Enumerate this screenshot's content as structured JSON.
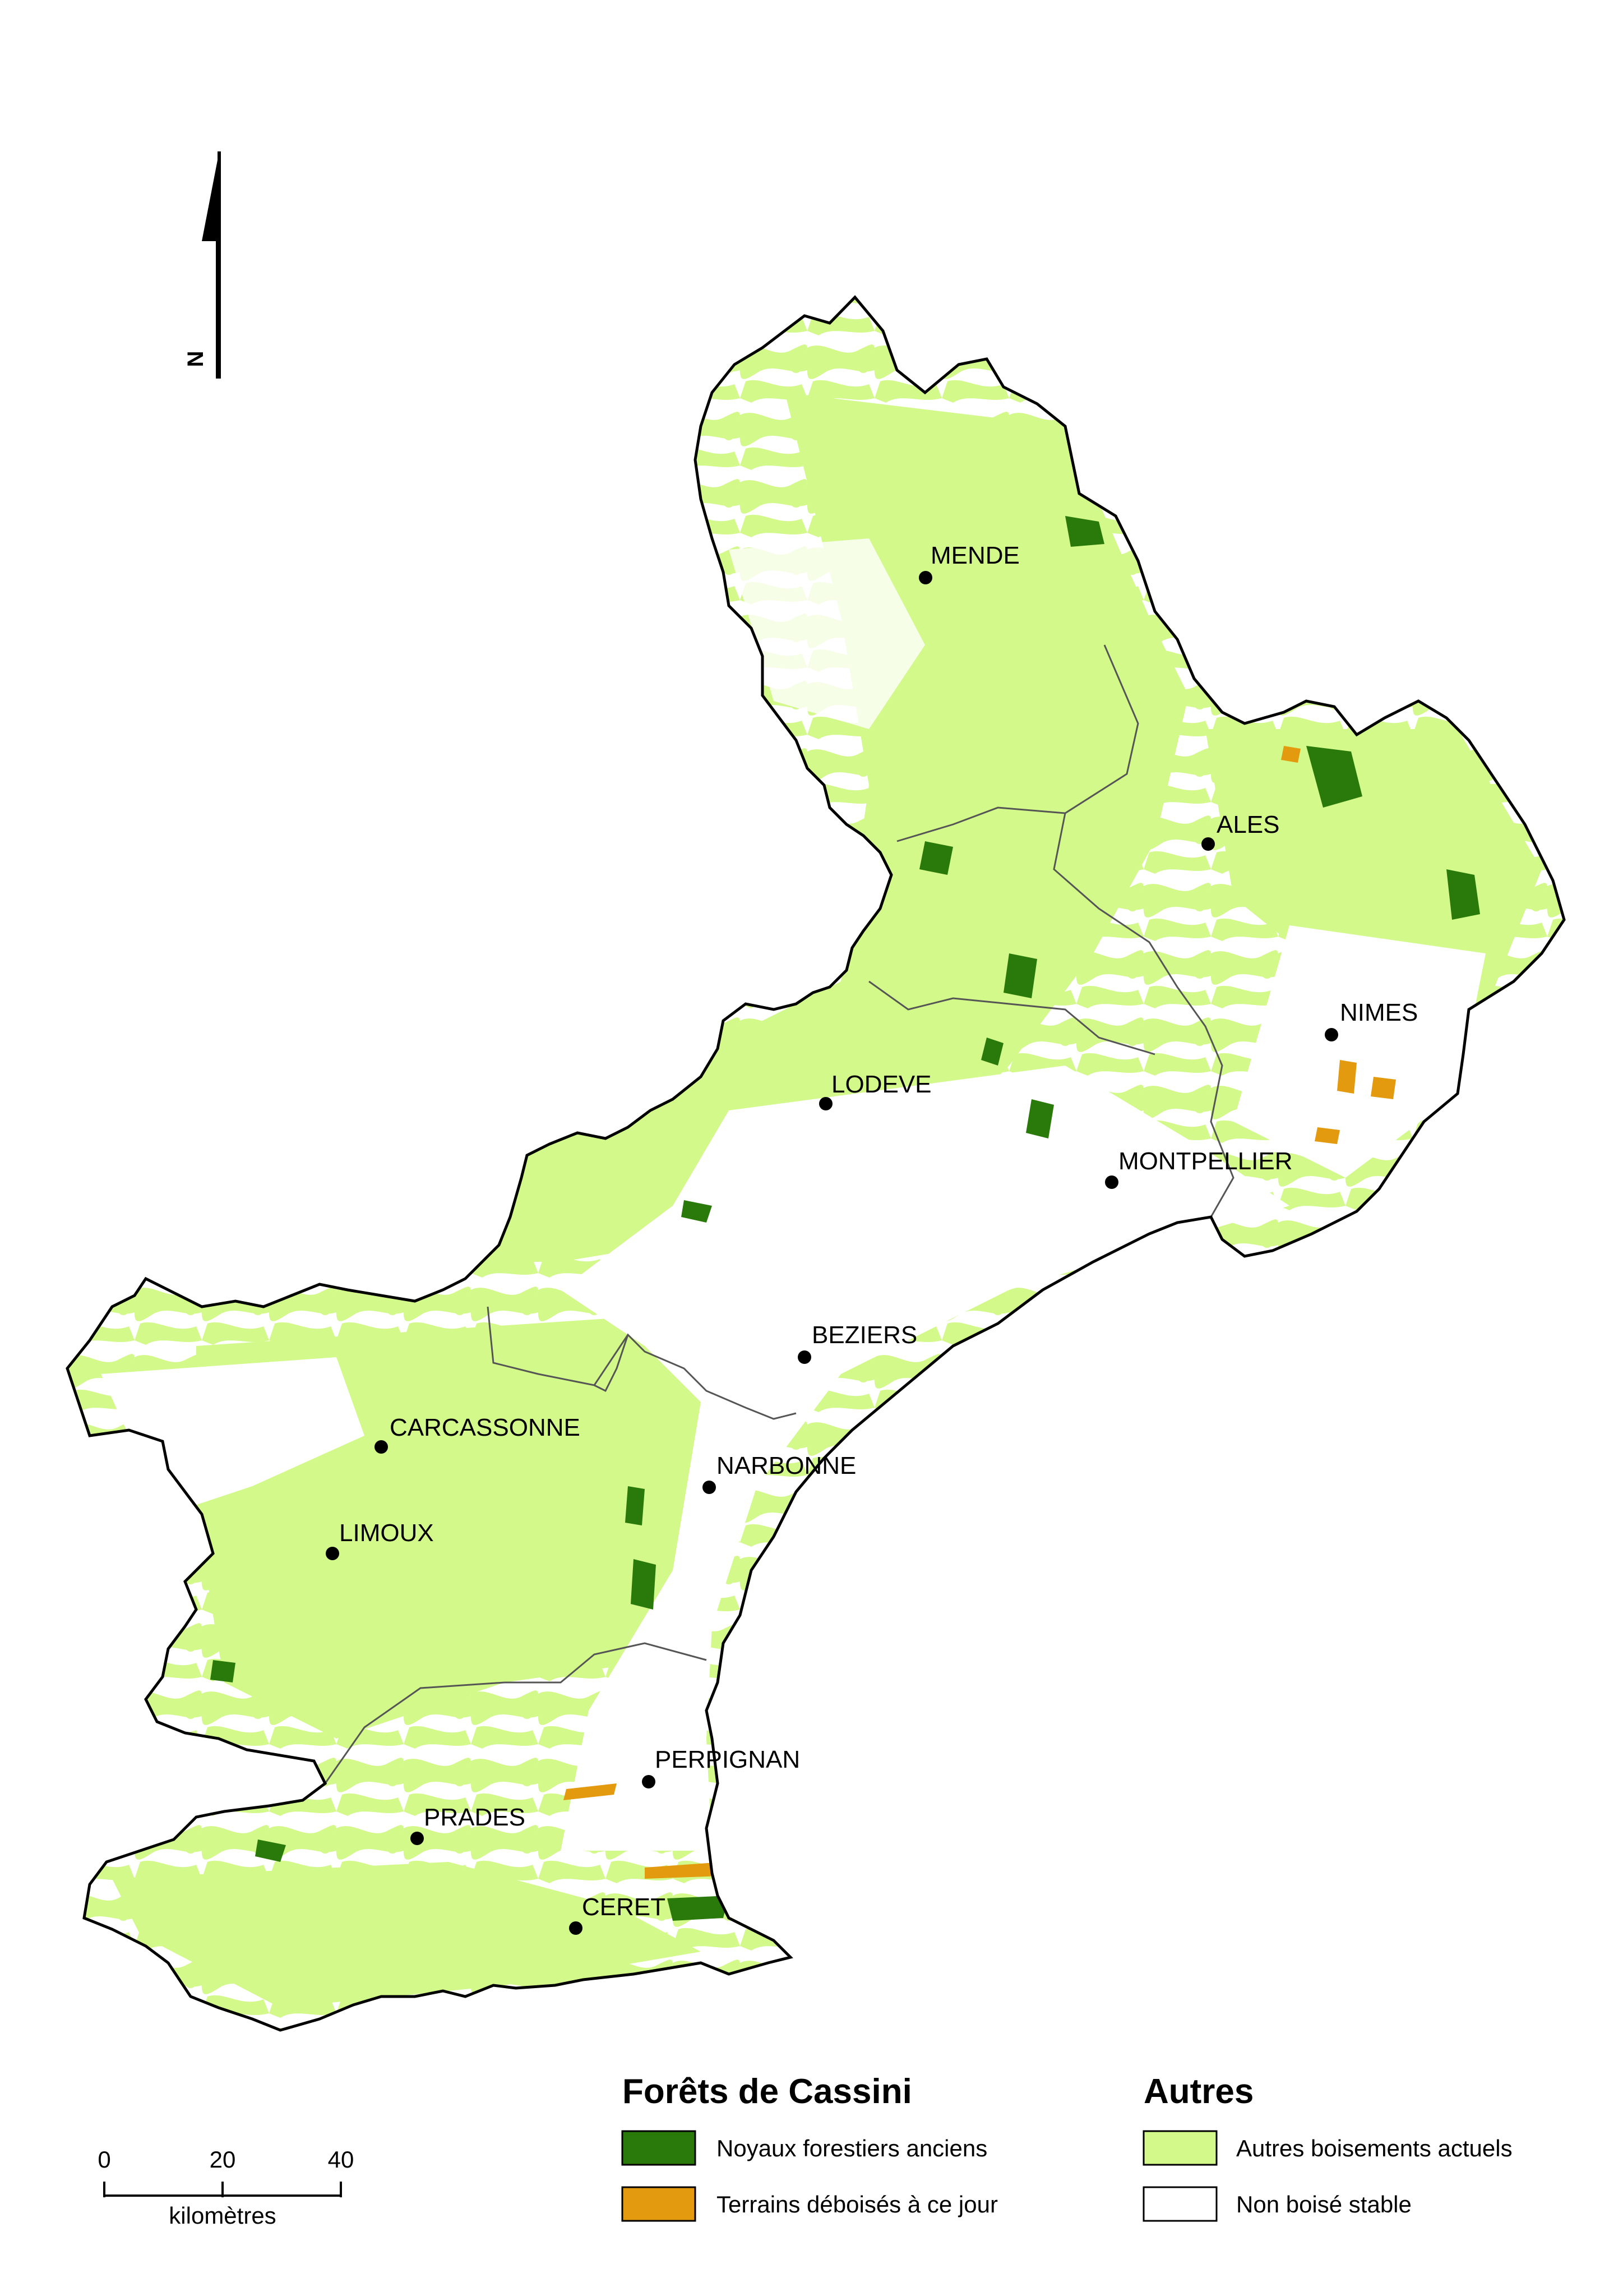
{
  "north_arrow": {
    "label": "N"
  },
  "cities": [
    {
      "id": "mende",
      "name": "MENDE"
    },
    {
      "id": "ales",
      "name": "ALES"
    },
    {
      "id": "nimes",
      "name": "NIMES"
    },
    {
      "id": "lodeve",
      "name": "LODEVE"
    },
    {
      "id": "montpellier",
      "name": "MONTPELLIER"
    },
    {
      "id": "beziers",
      "name": "BEZIERS"
    },
    {
      "id": "carcassonne",
      "name": "CARCASSONNE"
    },
    {
      "id": "narbonne",
      "name": "NARBONNE"
    },
    {
      "id": "limoux",
      "name": "LIMOUX"
    },
    {
      "id": "perpignan",
      "name": "PERPIGNAN"
    },
    {
      "id": "prades",
      "name": "PRADES"
    },
    {
      "id": "ceret",
      "name": "CERET"
    }
  ],
  "scale_bar": {
    "ticks": [
      "0",
      "20",
      "40"
    ],
    "unit": "kilomètres"
  },
  "legend": {
    "group1": {
      "title": "Forêts de Cassini",
      "items": [
        {
          "label": "Noyaux forestiers anciens",
          "color": "#2a7a0b"
        },
        {
          "label": "Terrains déboisés à ce jour",
          "color": "#e39a0f"
        }
      ]
    },
    "group2": {
      "title": "Autres",
      "items": [
        {
          "label": "Autres boisements actuels",
          "color": "#d2f98a"
        },
        {
          "label": "Non boisé stable",
          "color": "#ffffff"
        }
      ]
    }
  },
  "colors": {
    "forest_old": "#2a7a0b",
    "deforested": "#e39a0f",
    "woodland": "#d2f98a",
    "non_wooded": "#ffffff",
    "outline": "#000000",
    "internal_border": "#555555"
  }
}
